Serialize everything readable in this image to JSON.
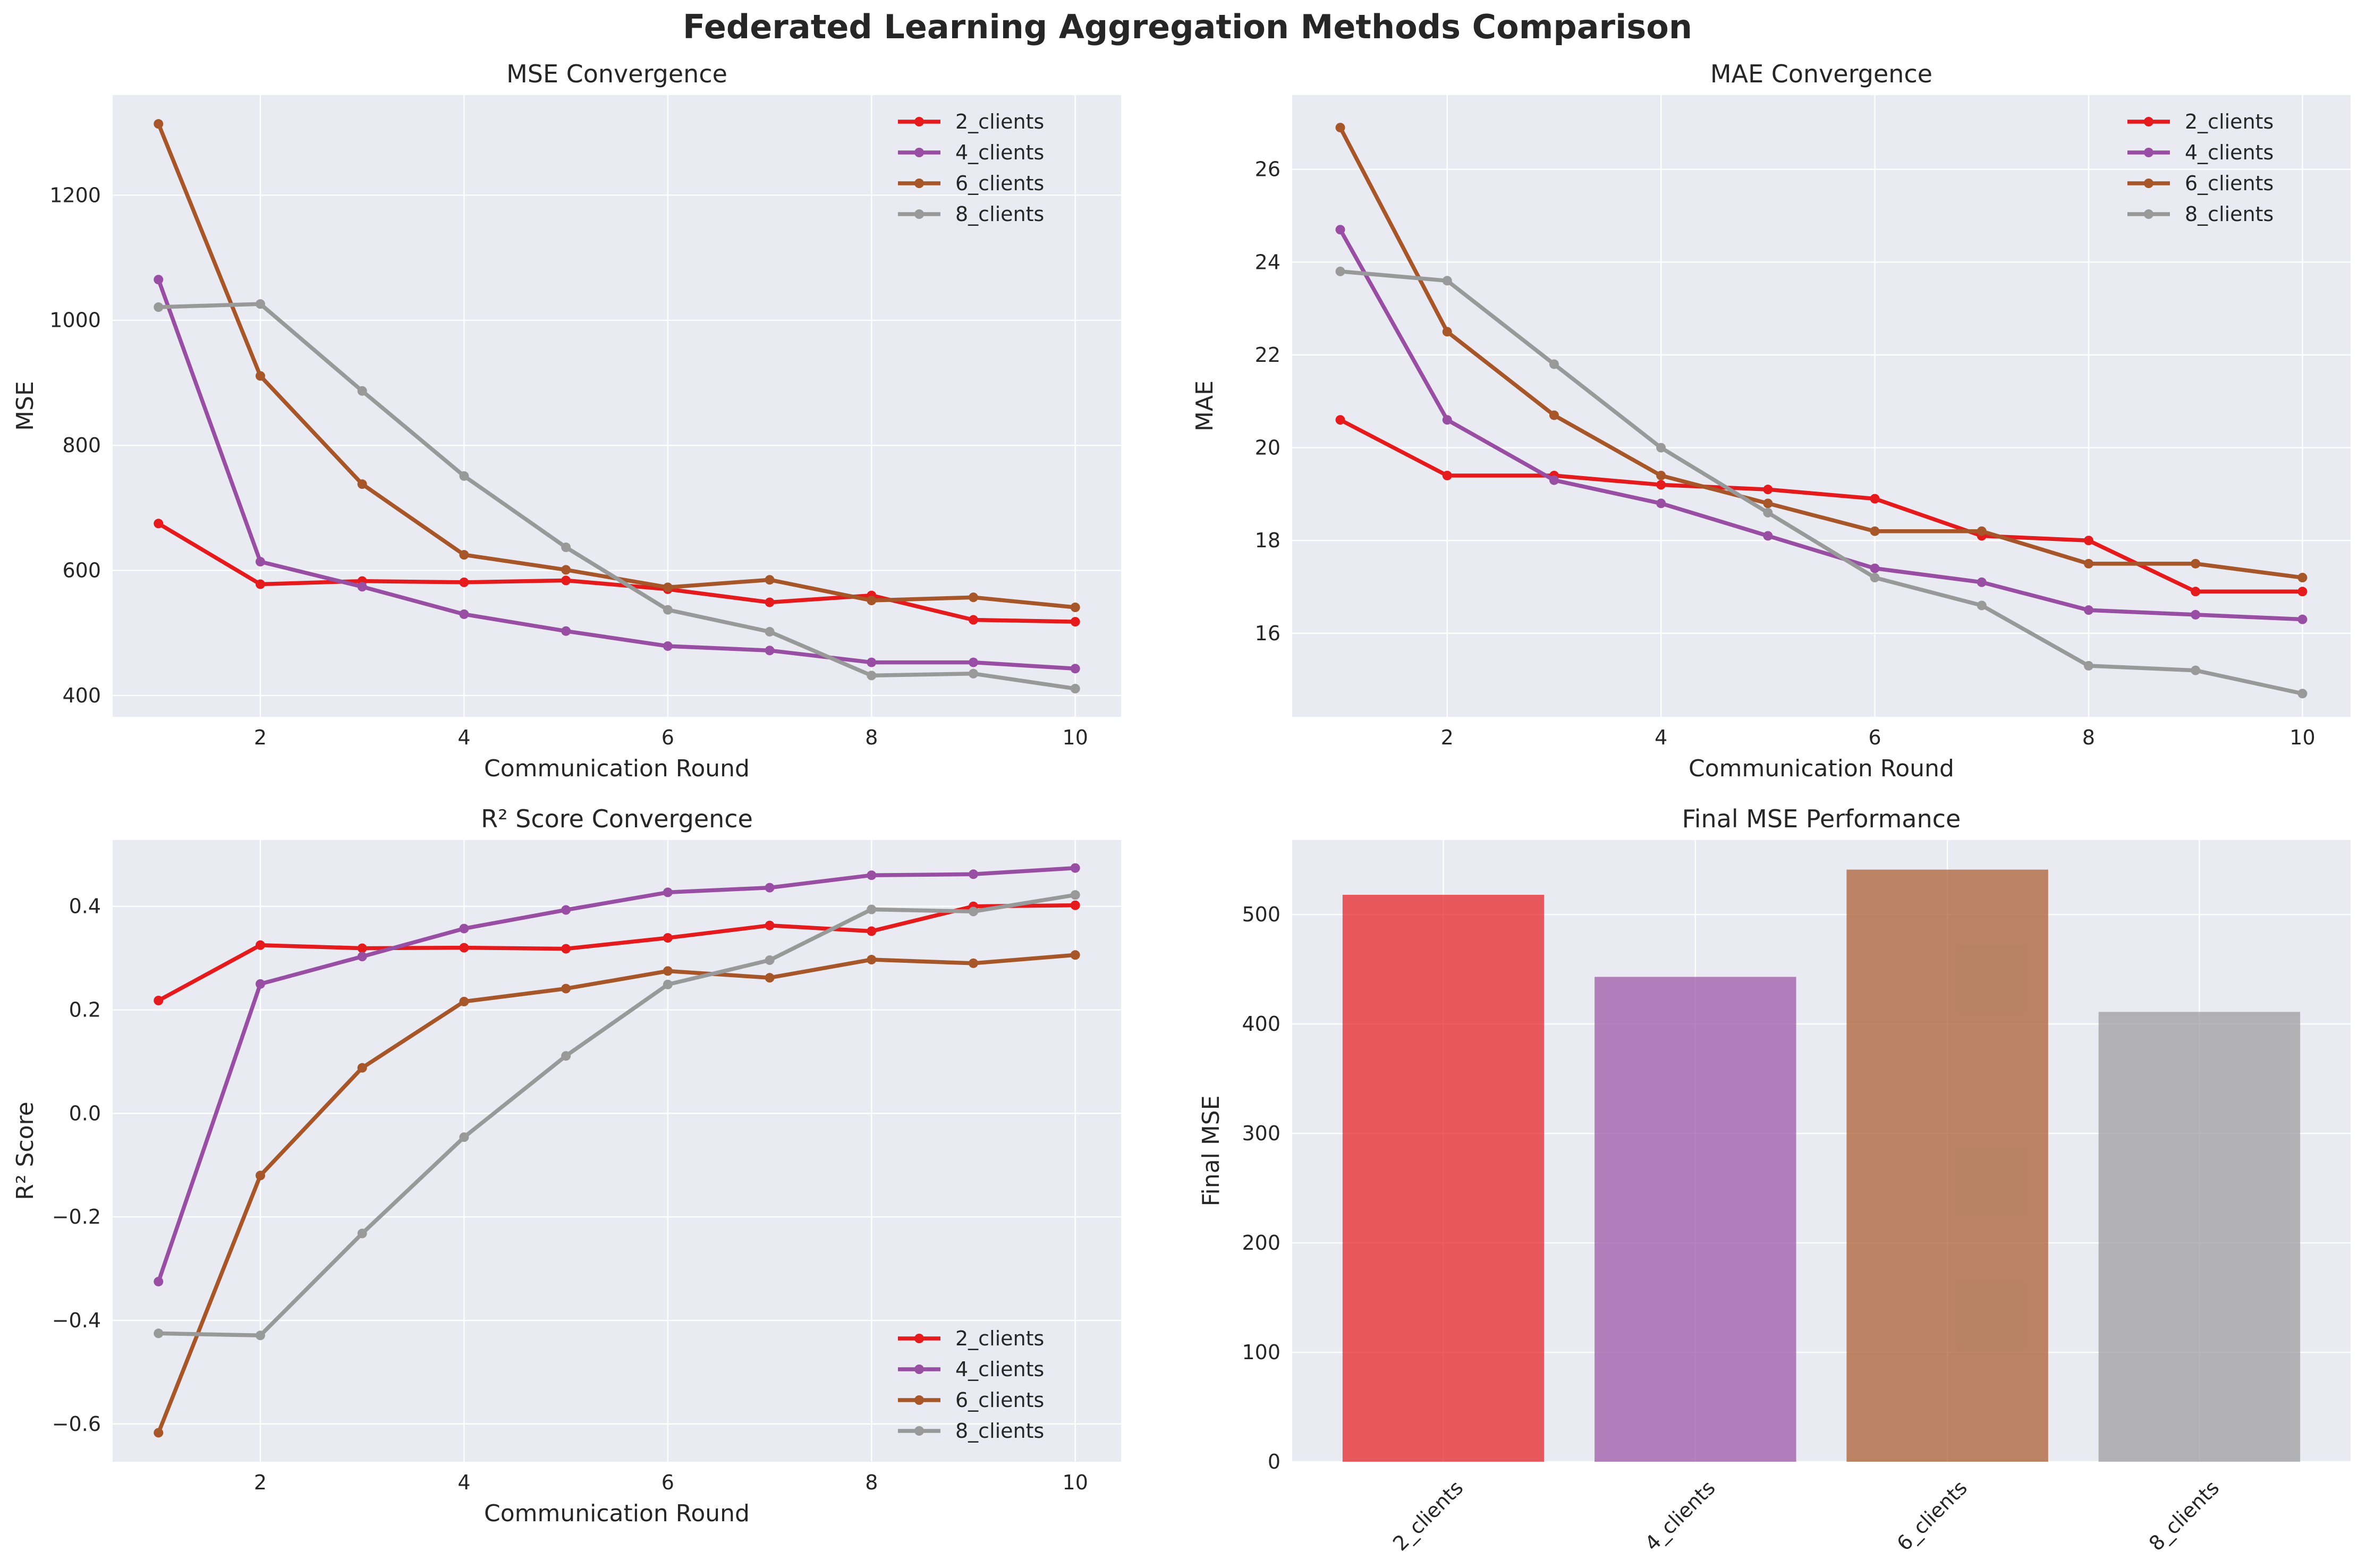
{
  "figure": {
    "title": "Federated Learning Aggregation Methods Comparison"
  },
  "colors": {
    "2_clients": "#e41a1c",
    "4_clients": "#984ea3",
    "6_clients": "#a65628",
    "8_clients": "#999999",
    "background": "#eaeaf2",
    "grid": "#ffffff"
  },
  "chart_data": [
    {
      "type": "line",
      "title": "MSE Convergence",
      "xlabel": "Communication Round",
      "ylabel": "MSE",
      "x": [
        1,
        2,
        3,
        4,
        5,
        6,
        7,
        8,
        9,
        10
      ],
      "xticks": [
        2,
        4,
        6,
        8,
        10
      ],
      "yticks": [
        400,
        600,
        800,
        1000,
        1200
      ],
      "xlim": [
        0.55,
        10.45
      ],
      "ylim": [
        366,
        1360
      ],
      "grid": true,
      "legend_position": "upper right",
      "series": [
        {
          "name": "2_clients",
          "values": [
            675,
            578,
            583,
            581,
            584,
            570,
            549,
            560,
            521,
            518
          ]
        },
        {
          "name": "4_clients",
          "values": [
            1065,
            614,
            574,
            530,
            503,
            479,
            472,
            453,
            453,
            443
          ]
        },
        {
          "name": "6_clients",
          "values": [
            1314,
            911,
            738,
            625,
            601,
            573,
            585,
            552,
            557,
            541
          ]
        },
        {
          "name": "8_clients",
          "values": [
            1021,
            1026,
            887,
            751,
            637,
            537,
            502,
            432,
            435,
            411
          ]
        }
      ]
    },
    {
      "type": "line",
      "title": "MAE Convergence",
      "xlabel": "Communication Round",
      "ylabel": "MAE",
      "x": [
        1,
        2,
        3,
        4,
        5,
        6,
        7,
        8,
        9,
        10
      ],
      "xticks": [
        2,
        4,
        6,
        8,
        10
      ],
      "yticks": [
        16,
        18,
        20,
        22,
        24,
        26
      ],
      "xlim": [
        0.55,
        10.45
      ],
      "ylim": [
        14.2,
        27.6
      ],
      "grid": true,
      "legend_position": "upper right",
      "series": [
        {
          "name": "2_clients",
          "values": [
            20.6,
            19.4,
            19.4,
            19.2,
            19.1,
            18.9,
            18.1,
            18.0,
            16.9,
            16.9
          ]
        },
        {
          "name": "4_clients",
          "values": [
            24.7,
            20.6,
            19.3,
            18.8,
            18.1,
            17.4,
            17.1,
            16.5,
            16.4,
            16.3
          ]
        },
        {
          "name": "6_clients",
          "values": [
            26.9,
            22.5,
            20.7,
            19.4,
            18.8,
            18.2,
            18.2,
            17.5,
            17.5,
            17.2
          ]
        },
        {
          "name": "8_clients",
          "values": [
            23.8,
            23.6,
            21.8,
            20.0,
            18.6,
            17.2,
            16.6,
            15.3,
            15.2,
            14.7
          ]
        }
      ]
    },
    {
      "type": "line",
      "title": "R² Score Convergence",
      "xlabel": "Communication Round",
      "ylabel": "R² Score",
      "x": [
        1,
        2,
        3,
        4,
        5,
        6,
        7,
        8,
        9,
        10
      ],
      "xticks": [
        2,
        4,
        6,
        8,
        10
      ],
      "yticks": [
        -0.6,
        -0.4,
        -0.2,
        0.0,
        0.2,
        0.4
      ],
      "ytick_labels": [
        "−0.6",
        "−0.4",
        "−0.2",
        "0.0",
        "0.2",
        "0.4"
      ],
      "xlim": [
        0.55,
        10.45
      ],
      "ylim": [
        -0.673,
        0.528
      ],
      "grid": true,
      "legend_position": "lower right",
      "series": [
        {
          "name": "2_clients",
          "values": [
            0.218,
            0.325,
            0.319,
            0.32,
            0.318,
            0.339,
            0.363,
            0.352,
            0.4,
            0.402
          ]
        },
        {
          "name": "4_clients",
          "values": [
            -0.325,
            0.25,
            0.303,
            0.357,
            0.393,
            0.427,
            0.436,
            0.46,
            0.462,
            0.474
          ]
        },
        {
          "name": "6_clients",
          "values": [
            -0.617,
            -0.12,
            0.088,
            0.216,
            0.241,
            0.275,
            0.262,
            0.297,
            0.29,
            0.306
          ]
        },
        {
          "name": "8_clients",
          "values": [
            -0.425,
            -0.429,
            -0.232,
            -0.046,
            0.111,
            0.249,
            0.296,
            0.394,
            0.39,
            0.422
          ]
        }
      ]
    },
    {
      "type": "bar",
      "title": "Final MSE Performance",
      "xlabel": "",
      "ylabel": "Final MSE",
      "categories": [
        "2_clients",
        "4_clients",
        "6_clients",
        "8_clients"
      ],
      "values": [
        518,
        443,
        541,
        411
      ],
      "yticks": [
        0,
        100,
        200,
        300,
        400,
        500
      ],
      "ylim": [
        0,
        568
      ],
      "grid": true,
      "bar_opacity": 0.7
    }
  ]
}
